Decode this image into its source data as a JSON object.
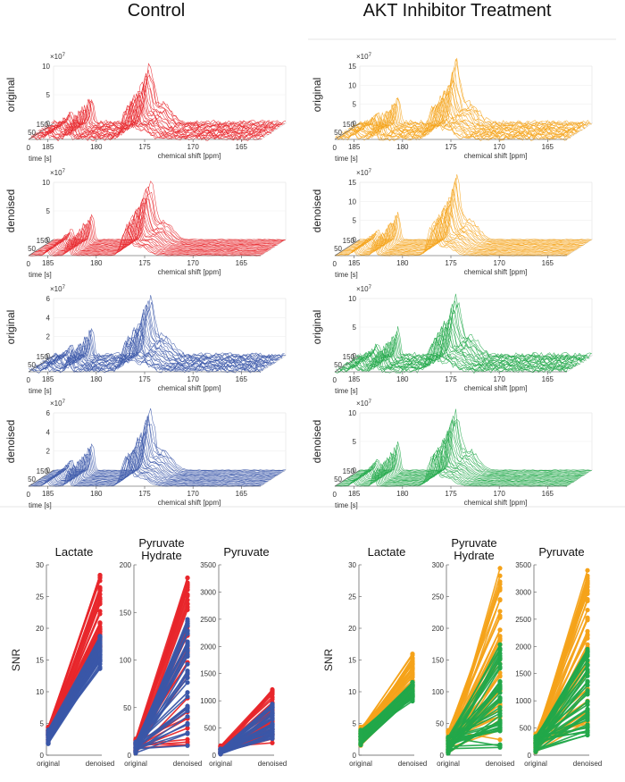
{
  "headers": {
    "left": "Control",
    "right": "AKT Inhibitor Treatment"
  },
  "spectra_axes": {
    "time_label": "time [s]",
    "shift_label": "chemical shift [ppm]",
    "exponent_base": "×10",
    "exponent_power": "7",
    "time_ticks": [
      "150",
      "50",
      "0"
    ],
    "shift_ticks": [
      "185",
      "180",
      "175",
      "170",
      "165"
    ]
  },
  "colors": {
    "red": "#e8262b",
    "blue": "#3a57a8",
    "orange": "#f5a31a",
    "green": "#22a84a"
  },
  "chart_data": [
    {
      "type": "line",
      "panel": "spectrum-control-red-original",
      "ylabel": "original",
      "series_color": "red",
      "zlim": [
        0,
        10
      ],
      "z_ticks": [
        "10",
        "5",
        "0"
      ],
      "peaks_ppm": [
        183,
        177
      ],
      "x": "chemical shift [ppm]",
      "y": "time [s]"
    },
    {
      "type": "line",
      "panel": "spectrum-control-red-denoised",
      "ylabel": "denoised",
      "series_color": "red",
      "zlim": [
        0,
        10
      ],
      "z_ticks": [
        "10",
        "5",
        "0"
      ],
      "peaks_ppm": [
        183,
        177
      ]
    },
    {
      "type": "line",
      "panel": "spectrum-control-blue-original",
      "ylabel": "original",
      "series_color": "blue",
      "zlim": [
        0,
        6
      ],
      "z_ticks": [
        "6",
        "4",
        "2",
        "0"
      ],
      "peaks_ppm": [
        183,
        177
      ]
    },
    {
      "type": "line",
      "panel": "spectrum-control-blue-denoised",
      "ylabel": "denoised",
      "series_color": "blue",
      "zlim": [
        0,
        6
      ],
      "z_ticks": [
        "6",
        "4",
        "2",
        "0"
      ],
      "peaks_ppm": [
        183,
        177
      ]
    },
    {
      "type": "line",
      "panel": "spectrum-akt-orange-original",
      "ylabel": "original",
      "series_color": "orange",
      "zlim": [
        0,
        15
      ],
      "z_ticks": [
        "15",
        "10",
        "5",
        "0"
      ],
      "peaks_ppm": [
        183,
        177
      ]
    },
    {
      "type": "line",
      "panel": "spectrum-akt-orange-denoised",
      "ylabel": "denoised",
      "series_color": "orange",
      "zlim": [
        0,
        15
      ],
      "z_ticks": [
        "15",
        "10",
        "5",
        "0"
      ],
      "peaks_ppm": [
        183,
        177
      ]
    },
    {
      "type": "line",
      "panel": "spectrum-akt-green-original",
      "ylabel": "original",
      "series_color": "green",
      "zlim": [
        0,
        10
      ],
      "z_ticks": [
        "10",
        "5",
        "0"
      ],
      "peaks_ppm": [
        183,
        177
      ]
    },
    {
      "type": "line",
      "panel": "spectrum-akt-green-denoised",
      "ylabel": "denoised",
      "series_color": "green",
      "zlim": [
        0,
        10
      ],
      "z_ticks": [
        "10",
        "5",
        "0"
      ],
      "peaks_ppm": [
        183,
        177
      ]
    },
    {
      "type": "line",
      "panel": "snr-control-lactate",
      "title": "Lactate",
      "ylabel": "SNR",
      "categories": [
        "original",
        "denoised"
      ],
      "ylim": [
        0,
        30
      ],
      "y_ticks": [
        "30",
        "25",
        "20",
        "15",
        "10",
        "5",
        "0"
      ],
      "series": [
        {
          "name": "red",
          "original_range": [
            2,
            4.5
          ],
          "denoised_range": [
            14,
            28.5
          ]
        },
        {
          "name": "blue",
          "original_range": [
            1.8,
            4
          ],
          "denoised_range": [
            13.5,
            19
          ]
        }
      ]
    },
    {
      "type": "line",
      "panel": "snr-control-pyruvate-hydrate",
      "title": "Pyruvate Hydrate",
      "categories": [
        "original",
        "denoised"
      ],
      "ylim": [
        0,
        200
      ],
      "y_ticks": [
        "200",
        "150",
        "100",
        "50",
        "0"
      ],
      "series": [
        {
          "name": "red",
          "original_range": [
            2,
            18
          ],
          "denoised_range": [
            5,
            190
          ]
        },
        {
          "name": "blue",
          "original_range": [
            2,
            14
          ],
          "denoised_range": [
            8,
            145
          ]
        }
      ]
    },
    {
      "type": "line",
      "panel": "snr-control-pyruvate",
      "title": "Pyruvate",
      "categories": [
        "original",
        "denoised"
      ],
      "ylim": [
        0,
        3500
      ],
      "y_ticks": [
        "3500",
        "3000",
        "2500",
        "2000",
        "1500",
        "1000",
        "500",
        "0"
      ],
      "series": [
        {
          "name": "red",
          "original_range": [
            20,
            180
          ],
          "denoised_range": [
            150,
            1220
          ]
        },
        {
          "name": "blue",
          "original_range": [
            20,
            120
          ],
          "denoised_range": [
            300,
            950
          ]
        }
      ]
    },
    {
      "type": "line",
      "panel": "snr-akt-lactate",
      "title": "Lactate",
      "ylabel": "SNR",
      "categories": [
        "original",
        "denoised"
      ],
      "ylim": [
        0,
        30
      ],
      "y_ticks": [
        "30",
        "25",
        "20",
        "15",
        "10",
        "5",
        "0"
      ],
      "series": [
        {
          "name": "orange",
          "original_range": [
            1.5,
            4.5
          ],
          "denoised_range": [
            9,
            16
          ]
        },
        {
          "name": "green",
          "original_range": [
            1.5,
            4
          ],
          "denoised_range": [
            8.5,
            11.5
          ]
        }
      ]
    },
    {
      "type": "line",
      "panel": "snr-akt-pyruvate-hydrate",
      "title": "Pyruvate Hydrate",
      "categories": [
        "original",
        "denoised"
      ],
      "ylim": [
        0,
        300
      ],
      "y_ticks": [
        "300",
        "250",
        "200",
        "150",
        "100",
        "50",
        "0"
      ],
      "series": [
        {
          "name": "orange",
          "original_range": [
            3,
            40
          ],
          "denoised_range": [
            20,
            295
          ]
        },
        {
          "name": "green",
          "original_range": [
            3,
            30
          ],
          "denoised_range": [
            10,
            180
          ]
        }
      ]
    },
    {
      "type": "line",
      "panel": "snr-akt-pyruvate",
      "title": "Pyruvate",
      "categories": [
        "original",
        "denoised"
      ],
      "ylim": [
        0,
        3500
      ],
      "y_ticks": [
        "3500",
        "3000",
        "2500",
        "2000",
        "1500",
        "1000",
        "500",
        "0"
      ],
      "series": [
        {
          "name": "orange",
          "original_range": [
            50,
            420
          ],
          "denoised_range": [
            300,
            3400
          ]
        },
        {
          "name": "green",
          "original_range": [
            50,
            350
          ],
          "denoised_range": [
            250,
            2000
          ]
        }
      ]
    }
  ]
}
